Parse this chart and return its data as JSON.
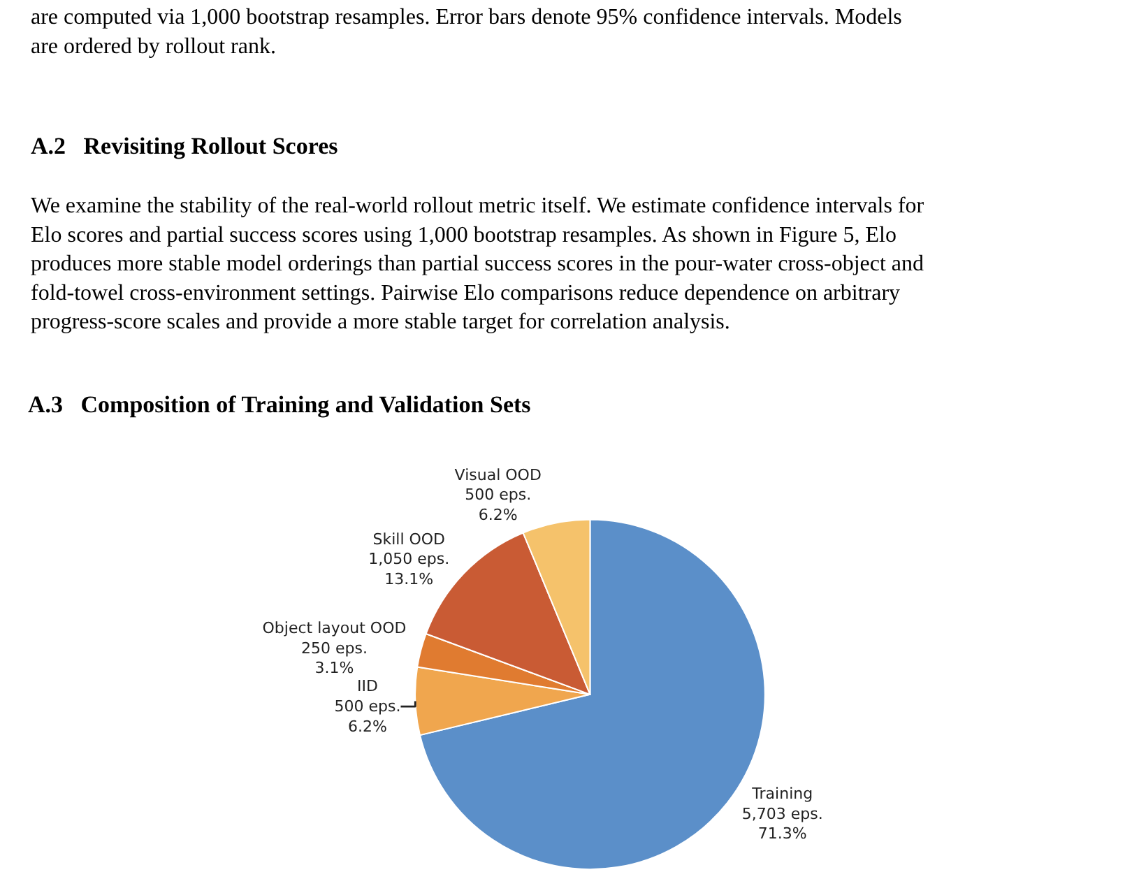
{
  "chart_data": {
    "type": "pie",
    "title": "A.3   Composition of Training and Validation Sets",
    "annotations": [
      "are computed via 1,000 bootstrap resamples. Error bars denote 95% confidence intervals. Models\nare ordered by rollout rank.",
      "A.2   Revisiting Rollout Scores",
      "We examine the stability of the real-world rollout metric itself. We estimate confidence intervals for\nElo scores and partial success scores using 1,000 bootstrap resamples. As shown in Figure 5, Elo\nproduces more stable model orderings than partial success scores in the pour-water cross-object and\nfold-towel cross-environment settings. Pairwise Elo comparisons reduce dependence on arbitrary\nprogress-score scales and provide a more stable target for correlation analysis."
    ],
    "categories": [
      "Training",
      "IID",
      "Object layout OOD",
      "Skill OOD",
      "Visual OOD"
    ],
    "values": [
      5703,
      500,
      250,
      1050,
      500
    ],
    "value_labels": [
      "5,703 eps.\n71.3%",
      "500 eps.\n6.2%",
      "250 eps.\n3.1%",
      "1,050 eps.\n13.1%",
      "500 eps.\n6.2%"
    ],
    "colors": [
      "#5b8fc9",
      "#f0a64e",
      "#e07b30",
      "#c95b34",
      "#f5c26b"
    ],
    "legend": false
  }
}
